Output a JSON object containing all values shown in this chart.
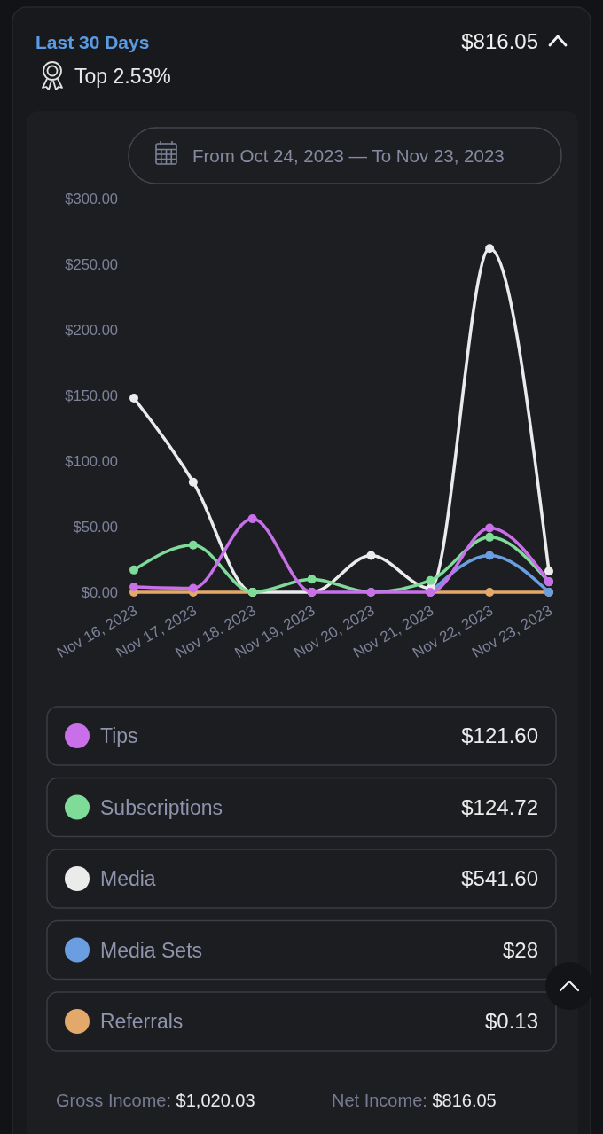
{
  "chart_data": {
    "type": "line",
    "title": "Last 30 Days",
    "subtitle": "From Oct 24, 2023 — To Nov 23, 2023",
    "annotations": [
      "$816.05",
      "Top 2.53%",
      "$121.60",
      "$124.72",
      "$541.60",
      "$28",
      "$0.13",
      "Gross Income: $1,020.03",
      "Net Income: $816.05"
    ],
    "categories": [
      "Nov 16, 2023",
      "Nov 17, 2023",
      "Nov 18, 2023",
      "Nov 19, 2023",
      "Nov 20, 2023",
      "Nov 21, 2023",
      "Nov 22, 2023",
      "Nov 23, 2023"
    ],
    "series": [
      {
        "name": "Tips",
        "color": "#c96fea",
        "values": [
          4,
          3,
          56,
          0,
          0,
          0,
          49,
          8
        ]
      },
      {
        "name": "Subscriptions",
        "color": "#7fdc98",
        "values": [
          17,
          36,
          0,
          10,
          0,
          9,
          42,
          8
        ]
      },
      {
        "name": "Media",
        "color": "#ebebeb",
        "values": [
          148,
          84,
          0,
          0,
          28,
          3,
          262,
          16
        ]
      },
      {
        "name": "Media Sets",
        "color": "#6a9ee0",
        "values": [
          null,
          null,
          null,
          null,
          null,
          0,
          28,
          0
        ]
      },
      {
        "name": "Referrals",
        "color": "#e3a96a",
        "values": [
          0,
          0,
          0,
          null,
          null,
          0,
          0,
          0
        ]
      }
    ],
    "ylim": [
      0,
      300
    ],
    "yticks": [
      {
        "value": 0,
        "label": "$0.00"
      },
      {
        "value": 50,
        "label": "$50.00"
      },
      {
        "value": 100,
        "label": "$100.00"
      },
      {
        "value": 150,
        "label": "$150.00"
      },
      {
        "value": 200,
        "label": "$200.00"
      },
      {
        "value": 250,
        "label": "$250.00"
      },
      {
        "value": 300,
        "label": "$300.00"
      }
    ],
    "marker": "circle",
    "legend": "bottom"
  }
}
